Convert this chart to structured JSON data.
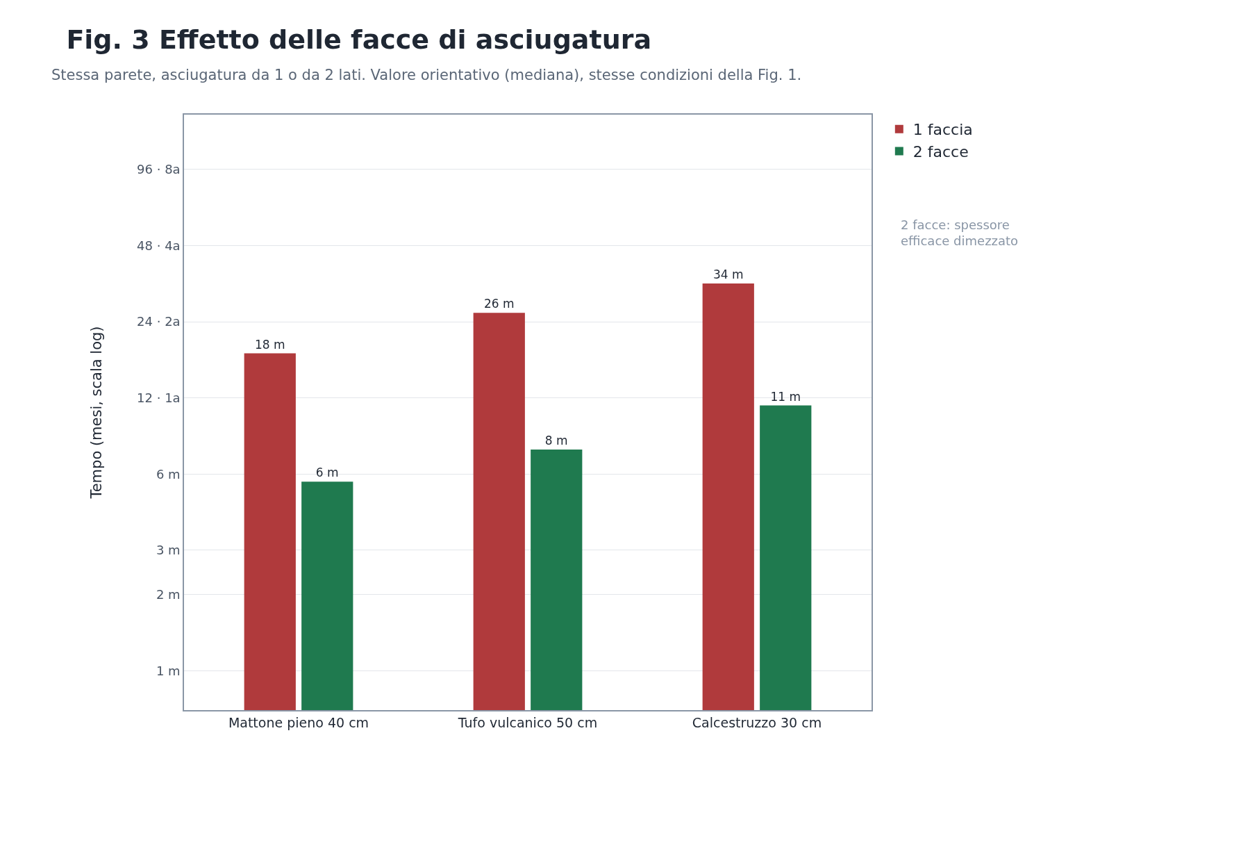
{
  "chart_data": {
    "type": "bar",
    "title": "Fig. 3 Effetto delle facce di asciugatura",
    "subtitle": "Stessa parete, asciugatura da 1 o da 2 lati. Valore orientativo (mediana), stesse condizioni della Fig. 1.",
    "ylabel": "Tempo (mesi, scala log)",
    "categories": [
      "Mattone pieno 40 cm",
      "Tufo vulcanico 50 cm",
      "Calcestruzzo 30 cm"
    ],
    "series": [
      {
        "name": "1 faccia",
        "color": "#b03a3c",
        "values": [
          18,
          26,
          34
        ],
        "value_labels": [
          "18 m",
          "26 m",
          "34 m"
        ]
      },
      {
        "name": "2 facce",
        "color": "#1f7a4f",
        "values": [
          5.6,
          7.5,
          11.2
        ],
        "value_labels": [
          "6 m",
          "8 m",
          "11 m"
        ]
      }
    ],
    "log": "y",
    "ylim": [
      0.7,
      158
    ],
    "yticks": [
      {
        "value": 1,
        "label": "1 m"
      },
      {
        "value": 2,
        "label": "2 m"
      },
      {
        "value": 3,
        "label": "3 m"
      },
      {
        "value": 6,
        "label": "6 m"
      },
      {
        "value": 12,
        "label": "12 · 1a"
      },
      {
        "value": 24,
        "label": "24 · 2a"
      },
      {
        "value": 48,
        "label": "48 · 4a"
      },
      {
        "value": 96,
        "label": "96 · 8a"
      }
    ],
    "grid": "y",
    "legend": "top right",
    "annotations": [
      "2 facce: spessore efficace dimezzato"
    ]
  }
}
